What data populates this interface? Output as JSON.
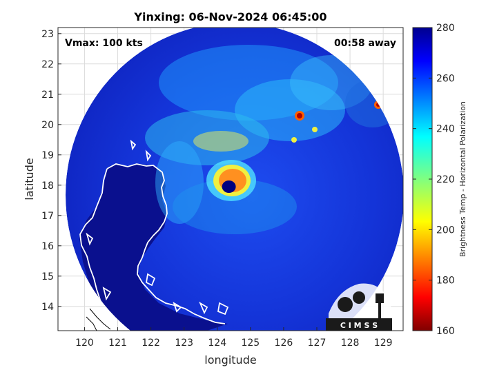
{
  "title": "Yinxing: 06-Nov-2024 06:45:00",
  "vmax_label": "Vmax: 100 kts",
  "time_away_label": "00:58 away",
  "xlabel": "longitude",
  "ylabel": "latitude",
  "x_ticks": [
    "120",
    "121",
    "122",
    "123",
    "124",
    "125",
    "126",
    "127",
    "128",
    "129"
  ],
  "y_ticks": [
    "23",
    "22",
    "21",
    "20",
    "19",
    "18",
    "17",
    "16",
    "15",
    "14"
  ],
  "x_tick_values": [
    120,
    121,
    122,
    123,
    124,
    125,
    126,
    127,
    128,
    129
  ],
  "y_tick_values": [
    23,
    22,
    21,
    20,
    19,
    18,
    17,
    16,
    15,
    14
  ],
  "xlim": [
    119.2,
    129.6
  ],
  "ylim": [
    13.2,
    23.2
  ],
  "storm_center": {
    "lon": 124.35,
    "lat": 17.95
  },
  "colorbar": {
    "label": "Brightness Temp - Horizontal Polarization",
    "ticks": [
      "280",
      "260",
      "240",
      "220",
      "200",
      "180",
      "160"
    ],
    "tick_values": [
      280,
      260,
      240,
      220,
      200,
      180,
      160
    ],
    "range": [
      160,
      280
    ],
    "colormap": "jet"
  },
  "logo_text": "C I M S S",
  "colors": {
    "scene_background": "#1a28c8",
    "land": "#0a0f8c",
    "coastline": "#ffffff",
    "eye": "#00007f"
  }
}
